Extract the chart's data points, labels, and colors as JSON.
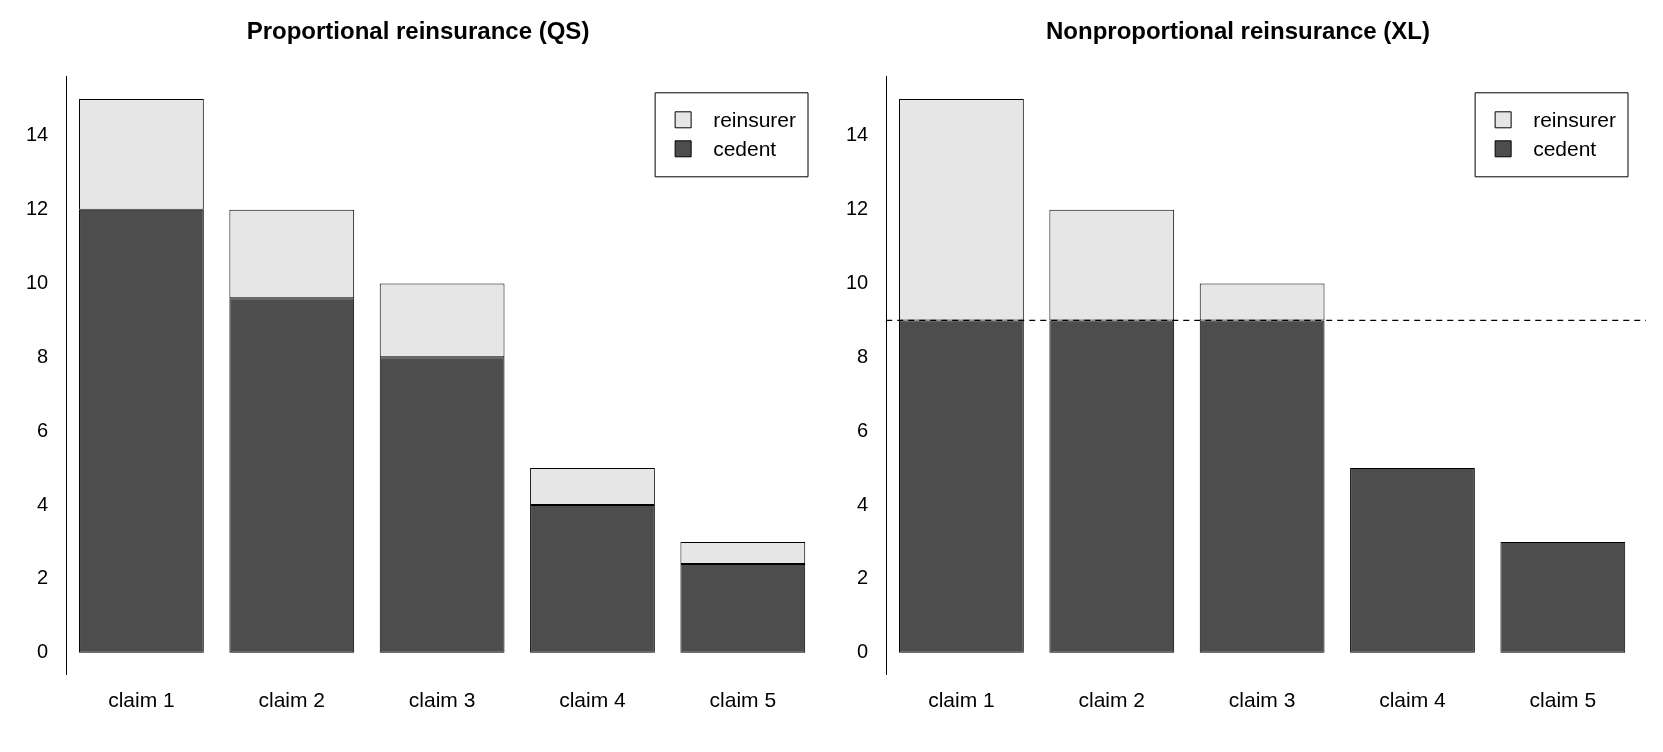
{
  "chart_data": [
    {
      "type": "bar",
      "title": "Proportional reinsurance (QS)",
      "categories": [
        "claim 1",
        "claim 2",
        "claim 3",
        "claim 4",
        "claim 5"
      ],
      "stacked": true,
      "ylim": [
        -0.6,
        15.6
      ],
      "yticks": [
        0,
        2,
        4,
        6,
        8,
        10,
        12,
        14
      ],
      "grid": false,
      "legend": "top right",
      "series": [
        {
          "name": "cedent",
          "color": "#4d4d4d",
          "values": [
            12,
            9.6,
            8,
            4,
            2.4
          ]
        },
        {
          "name": "reinsurer",
          "color": "#e6e6e6",
          "values": [
            3,
            2.4,
            2,
            1,
            0.6
          ]
        }
      ]
    },
    {
      "type": "bar",
      "title": "Nonproportional reinsurance (XL)",
      "categories": [
        "claim 1",
        "claim 2",
        "claim 3",
        "claim 4",
        "claim 5"
      ],
      "stacked": true,
      "ylim": [
        -0.6,
        15.6
      ],
      "yticks": [
        0,
        2,
        4,
        6,
        8,
        10,
        12,
        14
      ],
      "grid": false,
      "legend": "top right",
      "series": [
        {
          "name": "cedent",
          "color": "#4d4d4d",
          "values": [
            9,
            9,
            9,
            5,
            3
          ]
        },
        {
          "name": "reinsurer",
          "color": "#e6e6e6",
          "values": [
            6,
            3,
            1,
            0,
            0
          ]
        }
      ],
      "ref_lines": [
        {
          "axis": "y",
          "value": 9,
          "line_style": "dashed"
        }
      ]
    }
  ]
}
